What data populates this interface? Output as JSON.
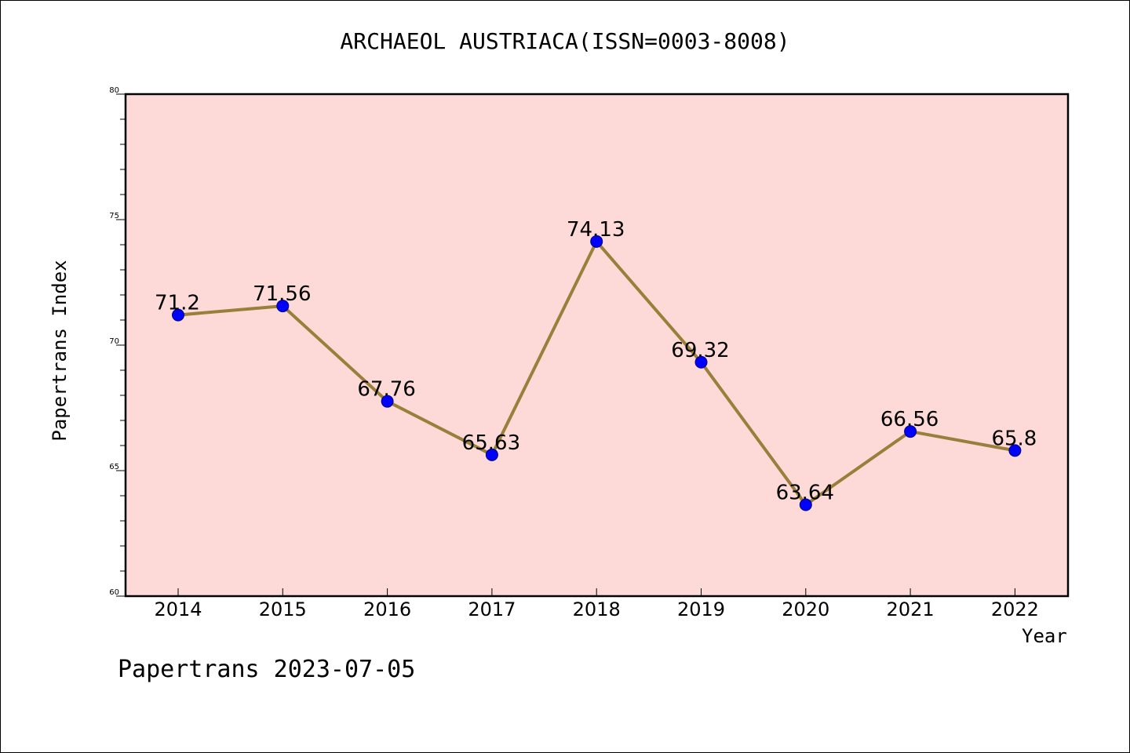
{
  "chart_data": {
    "type": "line",
    "title": "ARCHAEOL AUSTRIACA(ISSN=0003-8008)",
    "xlabel": "Year",
    "ylabel": "Papertrans Index",
    "categories": [
      "2014",
      "2015",
      "2016",
      "2017",
      "2018",
      "2019",
      "2020",
      "2021",
      "2022"
    ],
    "values": [
      71.2,
      71.56,
      67.76,
      65.63,
      74.13,
      69.32,
      63.64,
      66.56,
      65.8
    ],
    "value_labels": [
      "71.2",
      "71.56",
      "67.76",
      "65.63",
      "74.13",
      "69.32",
      "63.64",
      "66.56",
      "65.8"
    ],
    "ylim": [
      60,
      80
    ],
    "yticks": [
      60,
      65,
      70,
      75,
      80
    ],
    "ytick_labels": [
      "60",
      "65",
      "70",
      "75",
      "80"
    ],
    "grid": false,
    "colors": {
      "plot_background": "#fddad7",
      "line": "#9a7f3a",
      "marker": "#0000ff"
    }
  },
  "footer": {
    "text": "Papertrans 2023-07-05"
  }
}
